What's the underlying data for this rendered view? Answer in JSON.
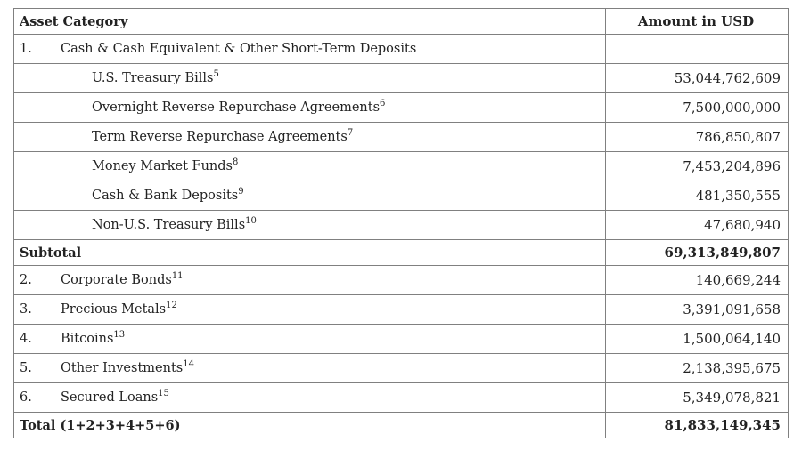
{
  "header": {
    "category": "Asset Category",
    "amount": "Amount in USD"
  },
  "section1": {
    "num": "1.",
    "label": "Cash & Cash Equivalent & Other Short-Term Deposits",
    "amount": ""
  },
  "sub_items": [
    {
      "label": "U.S. Treasury Bills",
      "note": "5",
      "amount": "53,044,762,609"
    },
    {
      "label": "Overnight Reverse Repurchase Agreements",
      "note": "6",
      "amount": "7,500,000,000"
    },
    {
      "label": "Term Reverse Repurchase Agreements",
      "note": "7",
      "amount": "786,850,807"
    },
    {
      "label": "Money Market Funds",
      "note": "8",
      "amount": "7,453,204,896"
    },
    {
      "label": "Cash & Bank Deposits",
      "note": "9",
      "amount": "481,350,555"
    },
    {
      "label": "Non-U.S. Treasury Bills",
      "note": "10",
      "amount": "47,680,940"
    }
  ],
  "subtotal": {
    "label": "Subtotal",
    "amount": "69,313,849,807"
  },
  "items": [
    {
      "num": "2.",
      "label": "Corporate Bonds",
      "note": "11",
      "amount": "140,669,244"
    },
    {
      "num": "3.",
      "label": "Precious Metals",
      "note": "12",
      "amount": "3,391,091,658"
    },
    {
      "num": "4.",
      "label": "Bitcoins",
      "note": "13",
      "amount": "1,500,064,140"
    },
    {
      "num": "5.",
      "label": "Other Investments",
      "note": "14",
      "amount": "2,138,395,675"
    },
    {
      "num": "6.",
      "label": "Secured Loans",
      "note": "15",
      "amount": "5,349,078,821"
    }
  ],
  "total": {
    "label": "Total (1+2+3+4+5+6)",
    "amount": "81,833,149,345"
  }
}
